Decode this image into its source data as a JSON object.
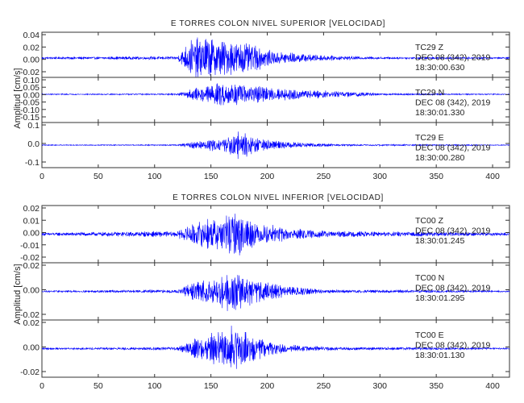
{
  "chart_data": [
    {
      "type": "line",
      "title": "E TORRES COLON NIVEL SUPERIOR [VELOCIDAD]",
      "ylabel": "Amplitud [cm/s]",
      "xlim": [
        0,
        415
      ],
      "x_ticks": [
        "0",
        "50",
        "100",
        "150",
        "200",
        "250",
        "300",
        "350",
        "400"
      ],
      "line_color": "#0000ff",
      "grid": false,
      "series": [
        {
          "name": "TC29 Z",
          "annotation": [
            "TC29   Z",
            "DEC 08 (342), 2019",
            "18:30:00.630"
          ],
          "ylim": [
            -0.03,
            0.04
          ],
          "y_ticks": [
            "0.04",
            "0.02",
            "0.00",
            "-0.02"
          ],
          "envelope": [
            [
              0,
              0.002
            ],
            [
              120,
              0.003
            ],
            [
              133,
              0.035
            ],
            [
              145,
              0.038
            ],
            [
              165,
              0.03
            ],
            [
              180,
              0.03
            ],
            [
              200,
              0.015
            ],
            [
              230,
              0.008
            ],
            [
              260,
              0.004
            ],
            [
              300,
              0.002
            ],
            [
              415,
              0.0015
            ]
          ]
        },
        {
          "name": "TC29 N",
          "annotation": [
            "TC29   N",
            "DEC 08 (342), 2019",
            "18:30:01.330"
          ],
          "ylim": [
            -0.2,
            0.12
          ],
          "y_ticks": [
            "0.10",
            "0.05",
            "0.00",
            "-0.05",
            "-0.10",
            "-0.15"
          ],
          "envelope": [
            [
              0,
              0.004
            ],
            [
              120,
              0.006
            ],
            [
              135,
              0.05
            ],
            [
              155,
              0.09
            ],
            [
              175,
              0.09
            ],
            [
              200,
              0.06
            ],
            [
              230,
              0.04
            ],
            [
              250,
              0.03
            ],
            [
              280,
              0.02
            ],
            [
              300,
              0.008
            ],
            [
              415,
              0.004
            ]
          ]
        },
        {
          "name": "TC29 E",
          "annotation": [
            "TC29   E",
            "DEC 08 (342), 2019",
            "18:30:00.280"
          ],
          "ylim": [
            -0.2,
            0.2
          ],
          "y_ticks": [
            "0.1",
            "0.0",
            "-0.1"
          ],
          "envelope": [
            [
              0,
              0.004
            ],
            [
              120,
              0.006
            ],
            [
              135,
              0.04
            ],
            [
              160,
              0.07
            ],
            [
              175,
              0.15
            ],
            [
              190,
              0.08
            ],
            [
              210,
              0.04
            ],
            [
              240,
              0.02
            ],
            [
              270,
              0.01
            ],
            [
              415,
              0.004
            ]
          ]
        }
      ]
    },
    {
      "type": "line",
      "title": "E TORRES COLON NIVEL INFERIOR [VELOCIDAD]",
      "ylabel": "Amplitud [cm/s]",
      "xlim": [
        0,
        415
      ],
      "x_ticks": [
        "0",
        "50",
        "100",
        "150",
        "200",
        "250",
        "300",
        "350",
        "400"
      ],
      "line_color": "#0000ff",
      "grid": false,
      "series": [
        {
          "name": "TC00 Z",
          "annotation": [
            "TC00   Z",
            "DEC 08 (342), 2019",
            "18:30:01.245"
          ],
          "ylim": [
            -0.025,
            0.025
          ],
          "y_ticks": [
            "0.02",
            "0.01",
            "0.00",
            "-0.01",
            "-0.02"
          ],
          "envelope": [
            [
              0,
              0.0015
            ],
            [
              120,
              0.003
            ],
            [
              135,
              0.012
            ],
            [
              160,
              0.018
            ],
            [
              172,
              0.024
            ],
            [
              190,
              0.012
            ],
            [
              220,
              0.006
            ],
            [
              260,
              0.003
            ],
            [
              415,
              0.0015
            ]
          ]
        },
        {
          "name": "TC00 N",
          "annotation": [
            "TC00   N",
            "DEC 08 (342), 2019",
            "18:30:01.295"
          ],
          "ylim": [
            -0.03,
            0.03
          ],
          "y_ticks": [
            "0.02",
            "0.00",
            "-0.02"
          ],
          "envelope": [
            [
              0,
              0.001
            ],
            [
              120,
              0.002
            ],
            [
              135,
              0.012
            ],
            [
              160,
              0.02
            ],
            [
              172,
              0.026
            ],
            [
              190,
              0.014
            ],
            [
              220,
              0.006
            ],
            [
              260,
              0.002
            ],
            [
              415,
              0.001
            ]
          ]
        },
        {
          "name": "TC00 E",
          "annotation": [
            "TC00   E",
            "DEC 08 (342), 2019",
            "18:30:01.130"
          ],
          "ylim": [
            -0.03,
            0.03
          ],
          "y_ticks": [
            "0.02",
            "0.00",
            "-0.02"
          ],
          "envelope": [
            [
              0,
              0.001
            ],
            [
              120,
              0.002
            ],
            [
              135,
              0.012
            ],
            [
              160,
              0.022
            ],
            [
              172,
              0.027
            ],
            [
              190,
              0.013
            ],
            [
              220,
              0.005
            ],
            [
              260,
              0.002
            ],
            [
              415,
              0.001
            ]
          ]
        }
      ]
    }
  ]
}
